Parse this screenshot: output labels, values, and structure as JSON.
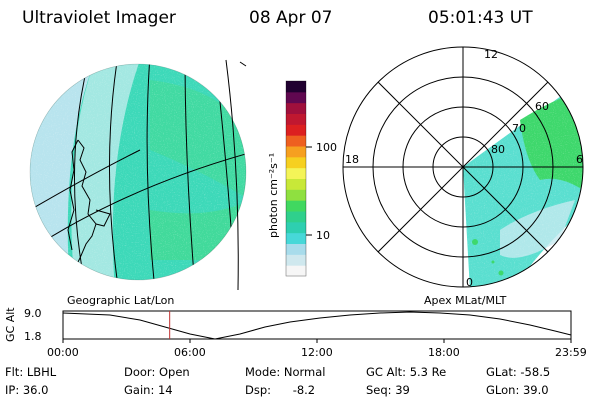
{
  "header": {
    "title": "Ultraviolet Imager",
    "date": "08 Apr 07",
    "time": "05:01:43 UT"
  },
  "panels": {
    "left_caption": "Geographic Lat/Lon",
    "right_caption": "Apex MLat/MLT"
  },
  "colorbar": {
    "unit_label": "photon cm⁻²s⁻¹",
    "ticks": [
      {
        "value": "100"
      },
      {
        "value": "10"
      }
    ],
    "colors": [
      "#f6f6f6",
      "#cfe8ee",
      "#a8dceb",
      "#47d8d8",
      "#2ecfb0",
      "#2fd08c",
      "#40d860",
      "#8fe040",
      "#c8e838",
      "#f4f458",
      "#f6d020",
      "#f6a020",
      "#ee6020",
      "#dc2020",
      "#c01830",
      "#a0103c",
      "#600850",
      "#200030"
    ]
  },
  "polar": {
    "mlt_labels": [
      "12",
      "18",
      "6",
      "0"
    ],
    "lat_labels": [
      "60",
      "70",
      "80"
    ]
  },
  "timeline": {
    "y_axis_label": "GC Alt",
    "y_ticks": [
      "9.0",
      "1.8"
    ],
    "x_ticks": [
      "00:00",
      "06:00",
      "12:00",
      "18:00",
      "23:59"
    ],
    "current_time_fraction": 0.21,
    "line_color": "#000000",
    "marker_color": "#c03030"
  },
  "info": {
    "filter": {
      "label": "Flt:",
      "value": "LBHL"
    },
    "ip": {
      "label": "IP:",
      "value": "36.0"
    },
    "door": {
      "label": "Door:",
      "value": "Open"
    },
    "gain": {
      "label": "Gain:",
      "value": "14"
    },
    "mode": {
      "label": "Mode:",
      "value": "Normal"
    },
    "dsp": {
      "label": "Dsp:",
      "value": "-8.2"
    },
    "gc_alt": {
      "label": "GC Alt:",
      "value": "5.3 Re"
    },
    "seq": {
      "label": "Seq:",
      "value": "39"
    },
    "glat": {
      "label": "GLat:",
      "value": "-58.5"
    },
    "glon": {
      "label": "GLon:",
      "value": "39.0"
    }
  }
}
